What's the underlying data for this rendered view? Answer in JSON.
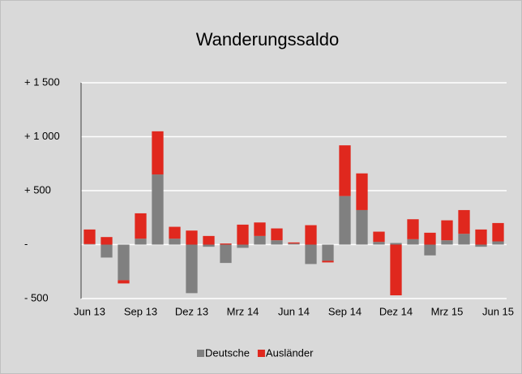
{
  "chart_data": {
    "type": "bar",
    "stacked": true,
    "title": "Wanderungssaldo",
    "categories": [
      "Jun 13",
      null,
      null,
      "Sep 13",
      null,
      null,
      "Dez 13",
      null,
      null,
      "Mrz 14",
      null,
      null,
      "Jun 14",
      null,
      null,
      "Sep 14",
      null,
      null,
      "Dez 14",
      null,
      null,
      "Mrz 15",
      null,
      null,
      "Jun 15"
    ],
    "series": [
      {
        "name": "Deutsche",
        "color": "#808080",
        "values": [
          5,
          -120,
          -330,
          55,
          650,
          55,
          -450,
          -20,
          -170,
          -30,
          80,
          40,
          10,
          -180,
          -150,
          450,
          320,
          25,
          15,
          50,
          -100,
          40,
          100,
          -20,
          30
        ]
      },
      {
        "name": "Ausländer",
        "color": "#e0281e",
        "values": [
          135,
          70,
          -30,
          235,
          400,
          110,
          130,
          80,
          10,
          185,
          125,
          110,
          10,
          180,
          -15,
          470,
          340,
          95,
          -470,
          185,
          110,
          185,
          220,
          140,
          170
        ]
      }
    ],
    "ylim": [
      -500,
      1500
    ],
    "yticks": [
      {
        "value": -500,
        "label": "- 500"
      },
      {
        "value": 0,
        "label": "-"
      },
      {
        "value": 500,
        "label": "+ 500"
      },
      {
        "value": 1000,
        "label": "+ 1 000"
      },
      {
        "value": 1500,
        "label": "+ 1 500"
      }
    ],
    "grid": true,
    "legend": "bottom"
  }
}
